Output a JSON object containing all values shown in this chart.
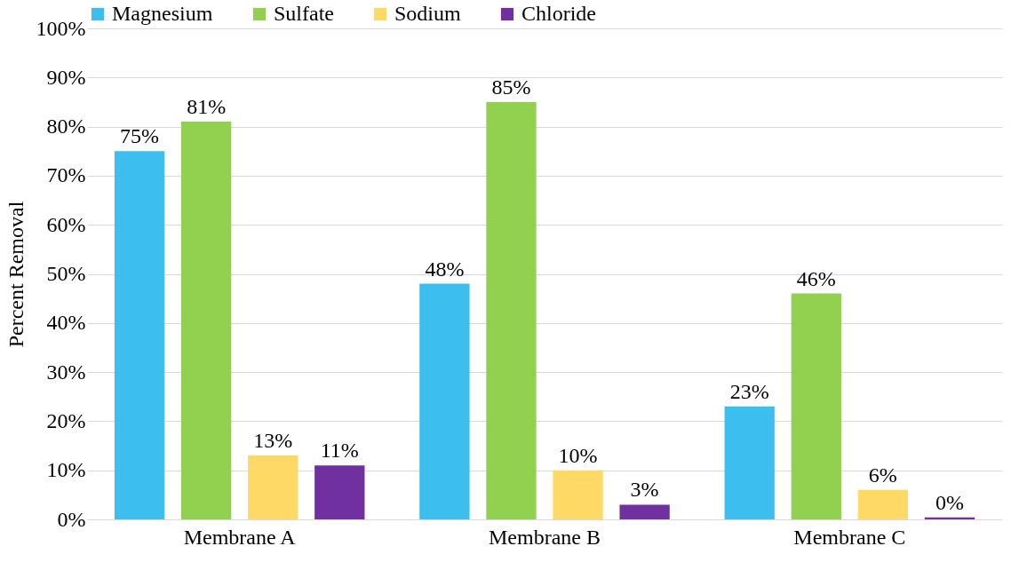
{
  "chart_data": {
    "type": "bar",
    "ylabel": "Percent Removal",
    "categories": [
      "Membrane A",
      "Membrane B",
      "Membrane C"
    ],
    "series": [
      {
        "name": "Magnesium",
        "color": "#3cbfee",
        "values": [
          75,
          48,
          23
        ],
        "value_labels": [
          "75%",
          "48%",
          "23%"
        ]
      },
      {
        "name": "Sulfate",
        "color": "#92d050",
        "values": [
          81,
          85,
          46
        ],
        "value_labels": [
          "81%",
          "85%",
          "46%"
        ]
      },
      {
        "name": "Sodium",
        "color": "#ffd966",
        "values": [
          13,
          10,
          6
        ],
        "value_labels": [
          "13%",
          "10%",
          "6%"
        ]
      },
      {
        "name": "Chloride",
        "color": "#7030a0",
        "values": [
          11,
          3,
          0.4
        ],
        "value_labels": [
          "11%",
          "3%",
          "0%"
        ]
      }
    ],
    "ylim": [
      0,
      100
    ],
    "yticks": [
      {
        "value": 0,
        "label": "0%"
      },
      {
        "value": 10,
        "label": "10%"
      },
      {
        "value": 20,
        "label": "20%"
      },
      {
        "value": 30,
        "label": "30%"
      },
      {
        "value": 40,
        "label": "40%"
      },
      {
        "value": 50,
        "label": "50%"
      },
      {
        "value": 60,
        "label": "60%"
      },
      {
        "value": 70,
        "label": "70%"
      },
      {
        "value": 80,
        "label": "80%"
      },
      {
        "value": 90,
        "label": "90%"
      },
      {
        "value": 100,
        "label": "100%"
      }
    ],
    "grid": "y",
    "legend": "top"
  }
}
